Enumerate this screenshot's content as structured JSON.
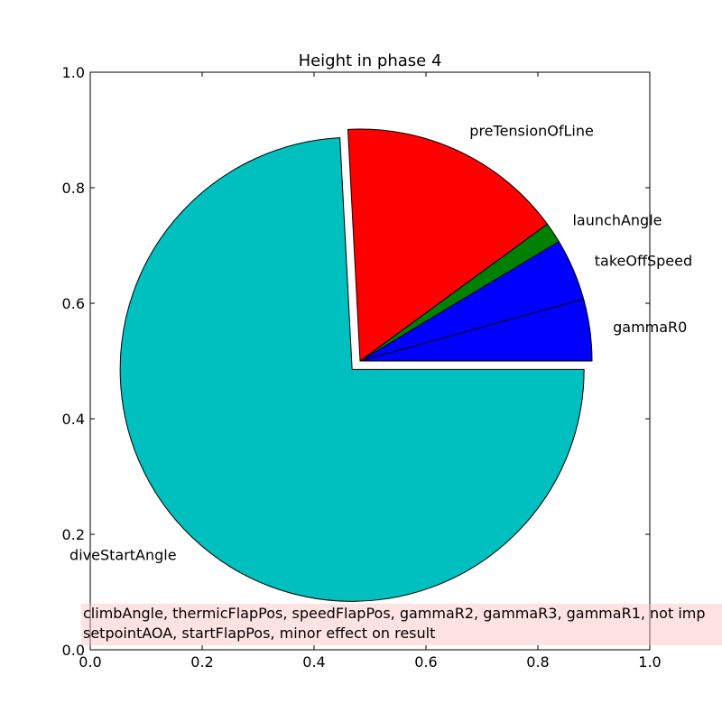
{
  "chart_data": {
    "type": "pie",
    "title": "Height in phase 4",
    "slices": [
      {
        "label": "gammaR0",
        "value": 4.5,
        "color": "#0000ff",
        "explode": 0
      },
      {
        "label": "takeOffSpeed",
        "value": 4.5,
        "color": "#0000ff",
        "explode": 0
      },
      {
        "label": "launchAngle",
        "value": 1.5,
        "color": "#008000",
        "explode": 0
      },
      {
        "label": "preTensionOfLine",
        "value": 16.5,
        "color": "#ff0000",
        "explode": 0
      },
      {
        "label": "diveStartAngle",
        "value": 77.5,
        "color": "#00bfbf",
        "explode": 0.05
      }
    ],
    "xlim": [
      0.0,
      1.0
    ],
    "ylim": [
      0.0,
      1.0
    ],
    "xticks": [
      "0.0",
      "0.2",
      "0.4",
      "0.6",
      "0.8",
      "1.0"
    ],
    "yticks": [
      "0.0",
      "0.2",
      "0.4",
      "0.6",
      "0.8",
      "1.0"
    ],
    "start_angle_deg": 0,
    "direction": "counterclockwise",
    "grid": false,
    "annotation": {
      "lines": [
        "climbAngle, thermicFlapPos, speedFlapPos, gammaR2, gammaR3, gammaR1, not imp",
        "setpointAOA, startFlapPos, minor effect on result"
      ],
      "background": "#ffdddd"
    }
  }
}
